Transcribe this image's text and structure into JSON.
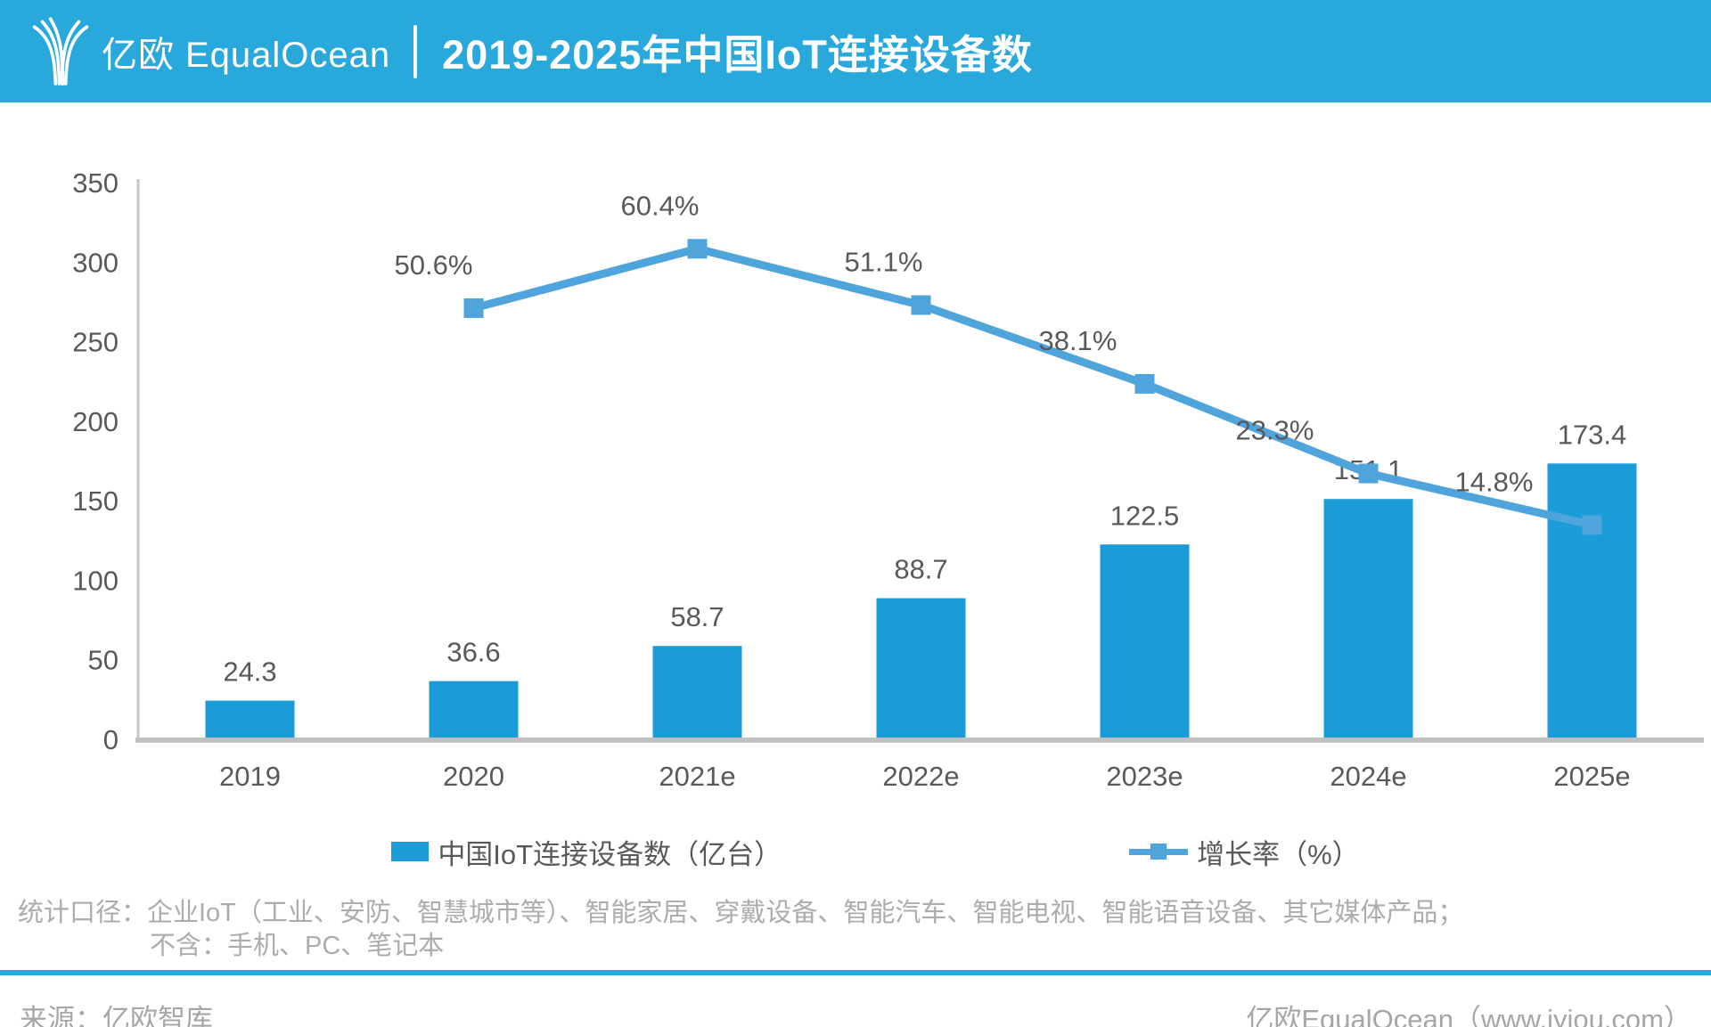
{
  "header": {
    "logo_cn": "亿欧",
    "logo_en": "EqualOcean",
    "title": "2019-2025年中国IoT连接设备数"
  },
  "chart_data": {
    "type": "bar+line",
    "categories": [
      "2019",
      "2020",
      "2021e",
      "2022e",
      "2023e",
      "2024e",
      "2025e"
    ],
    "series": [
      {
        "name": "中国IoT连接设备数（亿台）",
        "type": "bar",
        "color": "#1B9CD8",
        "values": [
          24.3,
          36.6,
          58.7,
          88.7,
          122.5,
          151.1,
          173.4
        ],
        "value_labels": [
          "24.3",
          "36.6",
          "58.7",
          "88.7",
          "122.5",
          "151.1",
          "173.4"
        ]
      },
      {
        "name": "增长率（%）",
        "type": "line",
        "color": "#4FA4DB",
        "values": [
          null,
          50.6,
          60.4,
          51.1,
          38.1,
          23.3,
          14.8
        ],
        "value_labels": [
          "",
          "50.6%",
          "60.4%",
          "51.1%",
          "38.1%",
          "23.3%",
          "14.8%"
        ]
      }
    ],
    "y_ticks": [
      "0",
      "50",
      "100",
      "150",
      "200",
      "250",
      "300",
      "350"
    ],
    "ylim": [
      0,
      350
    ],
    "grid": false,
    "legend_position": "bottom"
  },
  "colors": {
    "header_blue": "#29A8DC",
    "axis_gray": "#C6C6C6",
    "label_gray": "#595959"
  },
  "footnote": {
    "line1": "统计口径：企业IoT（工业、安防、智慧城市等）、智能家居、穿戴设备、智能汽车、智能电视、智能语音设备、其它媒体产品；",
    "line2": "不含：手机、PC、笔记本"
  },
  "source": {
    "left": "来源：亿欧智库",
    "right": "亿欧EqualOcean（www.iyiou.com）"
  }
}
